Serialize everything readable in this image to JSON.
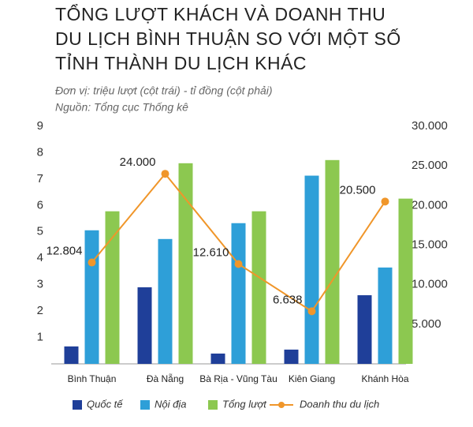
{
  "chart_data": {
    "type": "bar",
    "title": [
      "TỔNG LƯỢT KHÁCH VÀ DOANH THU",
      "DU LỊCH BÌNH THUẬN SO VỚI MỘT SỐ",
      "TỈNH THÀNH DU LỊCH KHÁC"
    ],
    "subtitle": [
      "Đơn vị: triệu lượt (cột trái)  -  tỉ đồng (cột phải)",
      "Nguồn: Tổng cục Thống kê"
    ],
    "categories": [
      "Bình Thuận",
      "Đà Nẵng",
      "Bà Rịa - Vũng Tàu",
      "Kiên Giang",
      "Khánh Hòa"
    ],
    "series": [
      {
        "name": "Quốc tế",
        "color": "#1f3f99",
        "values": [
          0.66,
          2.9,
          0.39,
          0.54,
          2.6
        ]
      },
      {
        "name": "Nội địa",
        "color": "#2e9fd8",
        "values": [
          5.06,
          4.73,
          5.33,
          7.13,
          3.65
        ]
      },
      {
        "name": "Tổng lượt",
        "color": "#8cc850",
        "values": [
          5.78,
          7.6,
          5.78,
          7.72,
          6.26
        ]
      },
      {
        "name": "Doanh thu du lịch",
        "color": "#f0962a",
        "type": "line",
        "axis": "y2",
        "values": [
          12804,
          24000,
          12610,
          6638,
          20500
        ],
        "value_labels": [
          "12.804",
          "24.000",
          "12.610",
          "6.638",
          "20.500"
        ]
      }
    ],
    "ylim": [
      0,
      9
    ],
    "yticks": [
      1,
      2,
      3,
      4,
      5,
      6,
      7,
      8,
      9
    ],
    "y2lim": [
      0,
      30000
    ],
    "y2ticks": [
      {
        "value": 5000,
        "label": "5.000"
      },
      {
        "value": 10000,
        "label": "10.000"
      },
      {
        "value": 15000,
        "label": "15.000"
      },
      {
        "value": 20000,
        "label": "20.000"
      },
      {
        "value": 25000,
        "label": "25.000"
      },
      {
        "value": 30000,
        "label": "30.000"
      }
    ],
    "grid": false
  }
}
